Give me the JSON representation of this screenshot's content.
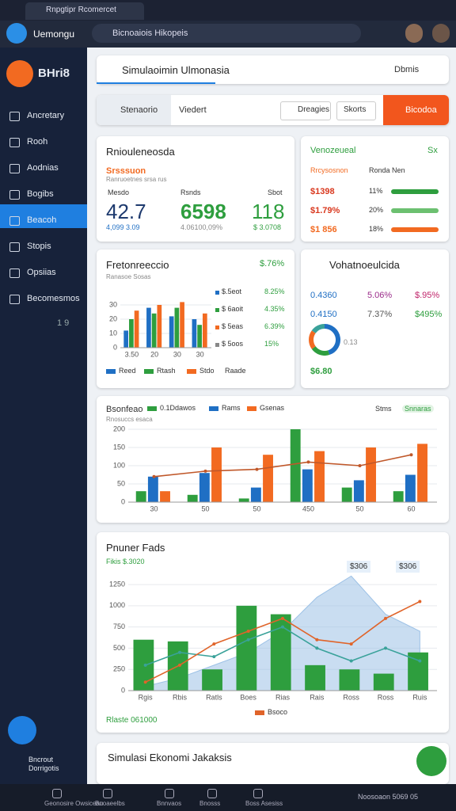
{
  "browser": {
    "tab": "Rnpgtipr Rcomercet",
    "address": "Bicnoaiois Hikopeis",
    "app": "Uemongu"
  },
  "sidebar": {
    "brand": "BHri8",
    "items": [
      "Ancretary",
      "Rooh",
      "Aodnias",
      "Bogibs",
      "Beacoh",
      "Stopis",
      "Opsiias",
      "Becomesmos"
    ],
    "page": "1 9",
    "footer": [
      "Bncrout",
      "Dorrigotis"
    ]
  },
  "search": {
    "text": "Simulaoimin Ulmonasia",
    "right": "Dbmis"
  },
  "tabs": [
    "Stenaorio",
    "Viedert",
    "Dreagies",
    "Skorts",
    "Bicodoa"
  ],
  "summary": {
    "title": "Rniouleneosda",
    "subtitle": "Srsssuon",
    "note": "Ranruoetnes srsa rus",
    "headers": [
      "Mesdo",
      "Rsnds",
      "Sbot"
    ],
    "values": [
      "42.7",
      "6598",
      "118"
    ],
    "subs": [
      "4,099 3.09",
      "4.06100,09%",
      "$ 3.0708"
    ]
  },
  "progress": {
    "title": "Venozeueal",
    "badge": "Sx",
    "headers": [
      "Rrcysosnon",
      "Ronda Nen"
    ],
    "rows": [
      [
        "$1398",
        "11%"
      ],
      [
        "$1.79%",
        "20%"
      ],
      [
        "$1 856",
        "18%"
      ]
    ]
  },
  "card3": {
    "title": "Fretonreeccio",
    "value": "$.76%",
    "sub": "Ranasoe Sosas",
    "rows": [
      [
        "$.5eot",
        "8.25%"
      ],
      [
        "$ 6aoit",
        "4.35%"
      ],
      [
        "$ 5eas",
        "6.39%"
      ],
      [
        "$ 5oos",
        "15%"
      ]
    ],
    "legend_extra": "Raade"
  },
  "card4": {
    "title": "Vohatnoeulcida",
    "rows": [
      [
        "0.4360",
        "5.06%",
        "$.95%"
      ],
      [
        "0.4150",
        "7.37%",
        "$495%"
      ]
    ],
    "center": "0.13",
    "total": "$6.80"
  },
  "card5": {
    "title": "Bsonfeao",
    "subtitle": "Rnosuccs esaca",
    "badge": "Stms",
    "badge2": "Snnaras"
  },
  "card6": {
    "title": "Pnuner Fads",
    "subtitle": "Fikis $.3020",
    "badges": [
      "$306",
      "$306"
    ],
    "footer": "Rlaste 061000"
  },
  "card7": {
    "title": "Simulasi Ekonomi Jakaksis"
  },
  "bottom": {
    "items": [
      "Geonosire Owsiceau",
      "Bnoaeelbs",
      "Bnnvaos",
      "Bnosss",
      "Boss Asesiss"
    ],
    "right": "Noosoaon 5069 05"
  },
  "chart_data": [
    {
      "type": "bar",
      "categories": [
        "3.50",
        "20",
        "30",
        "30"
      ],
      "ylim": [
        0,
        40
      ],
      "yticks": [
        0,
        10,
        20,
        30
      ],
      "grid": true,
      "series": [
        {
          "name": "Reed",
          "color": "#1f6fc4",
          "values": [
            12,
            28,
            22,
            20
          ]
        },
        {
          "name": "Rtash",
          "color": "#2e9e3e",
          "values": [
            20,
            24,
            28,
            16
          ]
        },
        {
          "name": "Stdo",
          "color": "#f26a21",
          "values": [
            26,
            30,
            32,
            24
          ]
        }
      ]
    },
    {
      "type": "bar",
      "categories": [
        "30",
        "50",
        "50",
        "450",
        "50",
        "60"
      ],
      "ylim": [
        0,
        200
      ],
      "yticks": [
        0,
        50,
        100,
        150,
        200
      ],
      "grid": true,
      "series": [
        {
          "name": "0.1Ddawos",
          "color": "#2e9e3e",
          "values": [
            30,
            20,
            10,
            200,
            40,
            30
          ]
        },
        {
          "name": "Rams",
          "color": "#1f6fc4",
          "values": [
            70,
            80,
            40,
            90,
            60,
            75
          ]
        },
        {
          "name": "Gsenas",
          "color": "#f26a21",
          "values": [
            30,
            150,
            130,
            140,
            150,
            160
          ]
        },
        {
          "kind": "line",
          "color": "#c0582a",
          "values": [
            70,
            85,
            90,
            110,
            100,
            130
          ]
        }
      ]
    },
    {
      "type": "bar",
      "categories": [
        "Rgis",
        "Rbis",
        "Ratls",
        "Boes",
        "Rias",
        "Rais",
        "Ross",
        "Ross",
        "Ruis"
      ],
      "ylim": [
        0,
        1400
      ],
      "yticks": [
        0,
        250,
        500,
        750,
        1000,
        1250
      ],
      "grid": true,
      "series": [
        {
          "kind": "area",
          "color": "#9cc1e6",
          "values": [
            50,
            150,
            300,
            450,
            700,
            1100,
            1350,
            900,
            700
          ]
        },
        {
          "color": "#2e9e3e",
          "values": [
            600,
            580,
            250,
            1000,
            900,
            300,
            250,
            200,
            450
          ]
        },
        {
          "kind": "line",
          "color": "#3aa29a",
          "values": [
            300,
            450,
            400,
            600,
            750,
            500,
            350,
            500,
            350
          ]
        },
        {
          "kind": "line",
          "name": "Bsoco",
          "color": "#e0642a",
          "values": [
            100,
            300,
            550,
            700,
            850,
            600,
            550,
            850,
            1050
          ]
        }
      ]
    },
    {
      "type": "pie",
      "donut": true,
      "values": [
        45,
        20,
        20,
        15
      ],
      "colors": [
        "#1f6fc4",
        "#2e9e3e",
        "#f26a21",
        "#3aa29a"
      ]
    }
  ]
}
